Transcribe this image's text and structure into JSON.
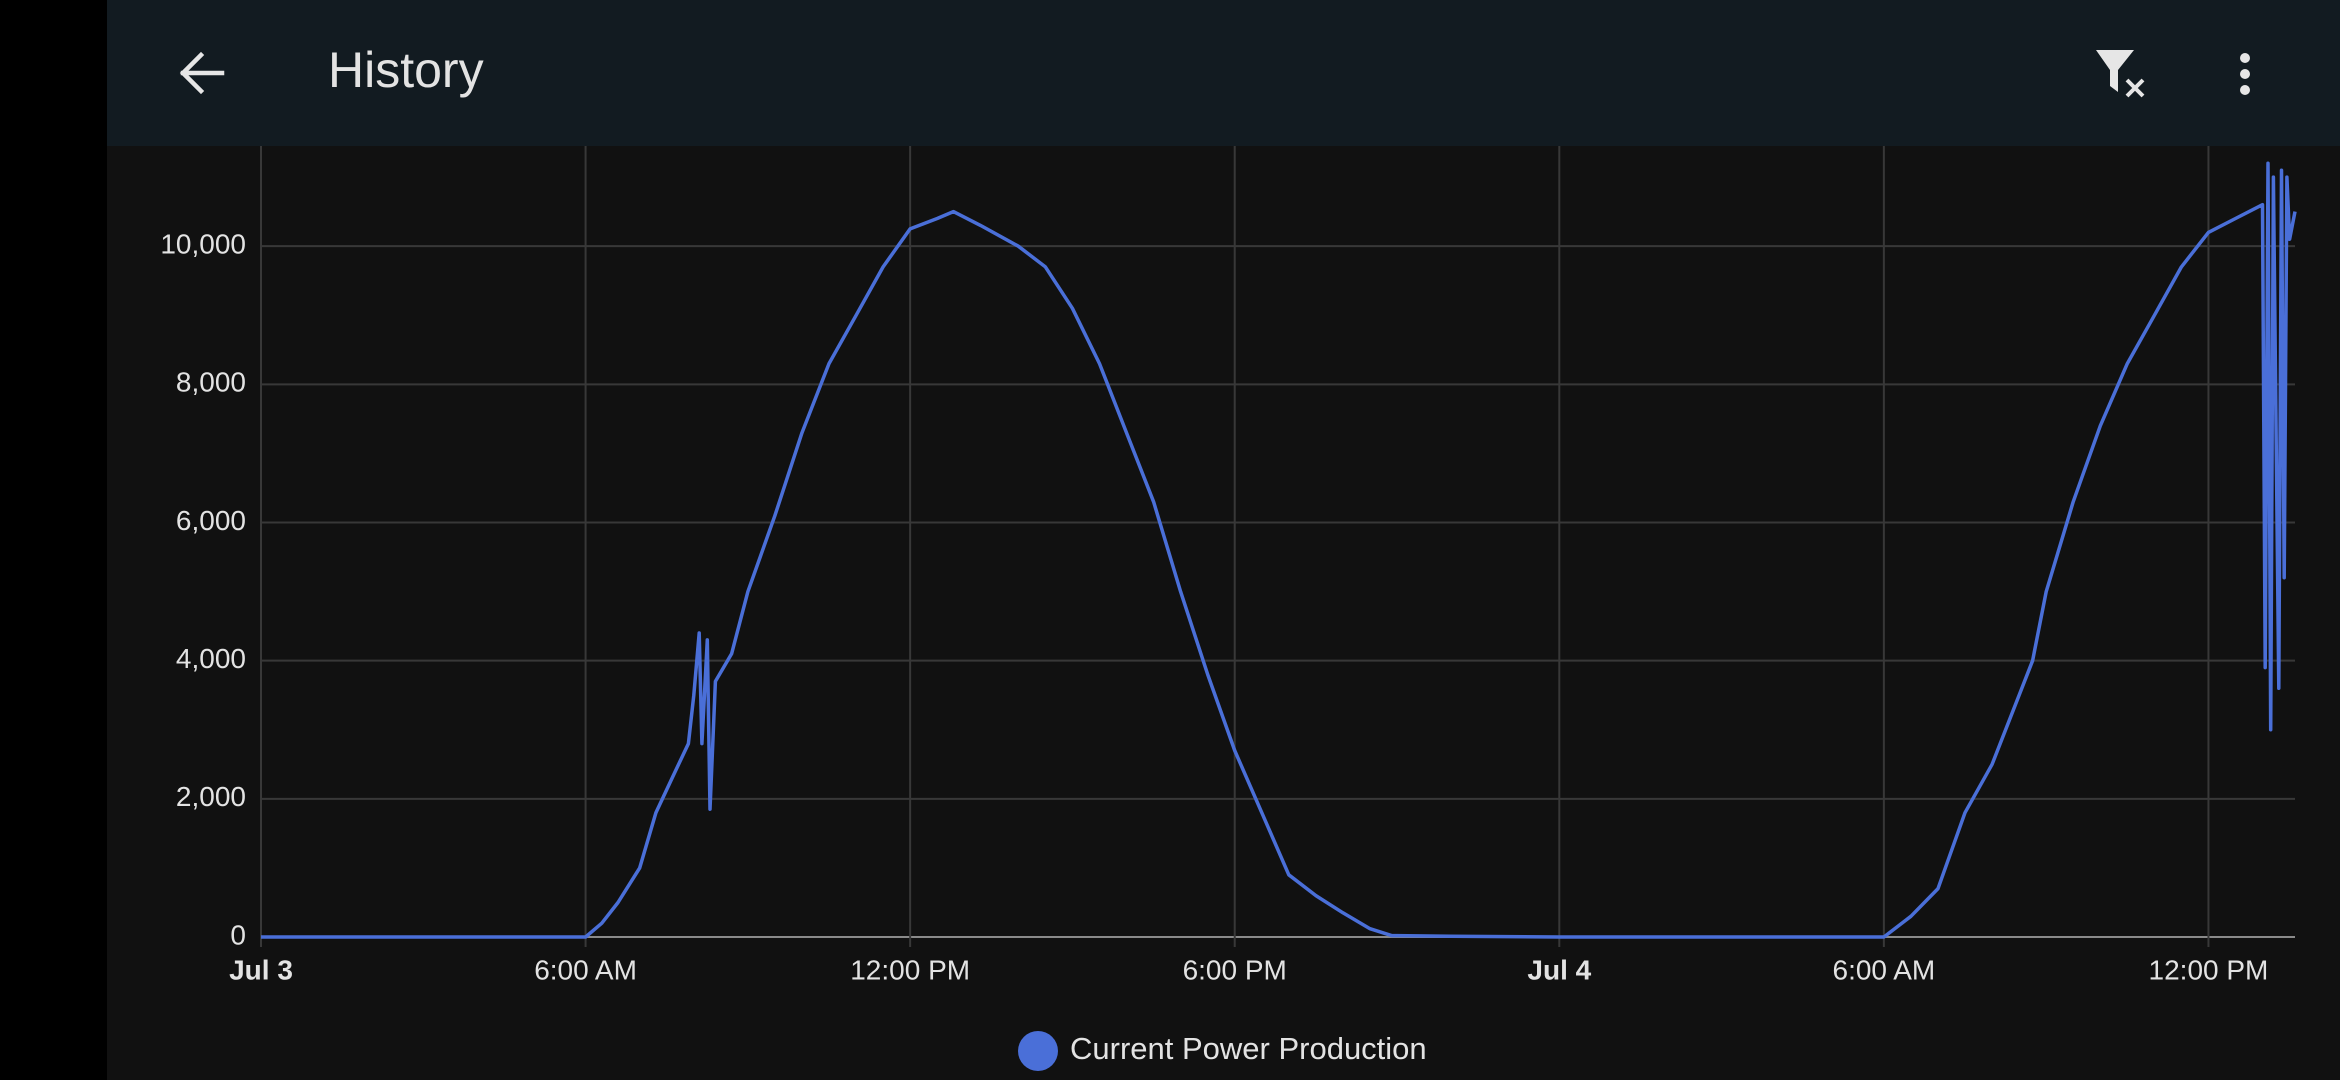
{
  "header": {
    "title": "History"
  },
  "chart_data": {
    "type": "line",
    "x": [
      0,
      6,
      6.3,
      6.6,
      7,
      7.3,
      7.6,
      7.9,
      8.0,
      8.1,
      8.15,
      8.25,
      8.3,
      8.4,
      8.7,
      9,
      9.5,
      10,
      10.5,
      11,
      11.5,
      12,
      12.5,
      12.8,
      13.3,
      14,
      14.5,
      15,
      15.5,
      16,
      16.5,
      17,
      17.5,
      18,
      18.5,
      19,
      19.5,
      20,
      20.5,
      20.9,
      22,
      24,
      30,
      30.5,
      31,
      31.5,
      32,
      32.5,
      32.75,
      33,
      33.5,
      34,
      34.5,
      35,
      35.5,
      36,
      36.5,
      37,
      37.05,
      37.1,
      37.15,
      37.2,
      37.3,
      37.35,
      37.4,
      37.45,
      37.5,
      37.6
    ],
    "series": [
      {
        "name": "Current Power Production",
        "color": "#4a6fd8",
        "values": [
          0,
          0,
          200,
          500,
          1000,
          1800,
          2300,
          2800,
          3500,
          4400,
          2800,
          4300,
          1850,
          3700,
          4100,
          5000,
          6100,
          7300,
          8300,
          9000,
          9700,
          10250,
          10400,
          10500,
          10300,
          10000,
          9700,
          9100,
          8300,
          7300,
          6300,
          5000,
          3800,
          2700,
          1800,
          900,
          600,
          350,
          120,
          20,
          10,
          0,
          0,
          300,
          700,
          1800,
          2500,
          3500,
          4000,
          5000,
          6300,
          7400,
          8300,
          9000,
          9700,
          10200,
          10400,
          10600,
          3900,
          11200,
          3000,
          11000,
          3600,
          11100,
          5200,
          11000,
          10100,
          10500
        ]
      }
    ],
    "xlim": [
      0,
      37.6
    ],
    "ylim": [
      0,
      11450
    ],
    "xticks": [
      {
        "value": 0,
        "label": "Jul 3"
      },
      {
        "value": 6,
        "label": "6:00 AM"
      },
      {
        "value": 12,
        "label": "12:00 PM"
      },
      {
        "value": 18,
        "label": "6:00 PM"
      },
      {
        "value": 24,
        "label": "Jul 4"
      },
      {
        "value": 30,
        "label": "6:00 AM"
      },
      {
        "value": 36,
        "label": "12:00 PM"
      }
    ],
    "yticks": [
      0,
      {
        "value": 2000,
        "label": "2,000"
      },
      {
        "value": 4000,
        "label": "4,000"
      },
      {
        "value": 6000,
        "label": "6,000"
      },
      {
        "value": 8000,
        "label": "8,000"
      },
      {
        "value": 10000,
        "label": "10,000"
      }
    ],
    "grid": true
  }
}
